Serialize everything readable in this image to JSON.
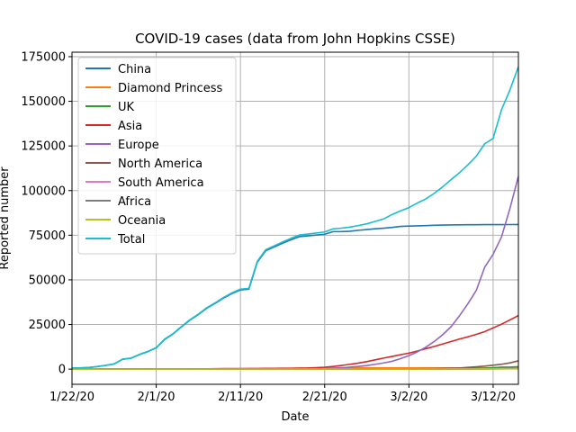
{
  "chart_data": {
    "type": "line",
    "title": "COVID-19 cases (data from John Hopkins CSSE)",
    "xlabel": "Date",
    "ylabel": "Reported number",
    "x_start": "1/22/20",
    "x_end": "3/15/20",
    "xlim": [
      "1/22/20",
      "3/15/20"
    ],
    "ylim": [
      -8500,
      177500
    ],
    "x_ticks": [
      {
        "date": "1/22/20",
        "label": "1/22/20"
      },
      {
        "date": "2/1/20",
        "label": "2/1/20"
      },
      {
        "date": "2/11/20",
        "label": "2/11/20"
      },
      {
        "date": "2/21/20",
        "label": "2/21/20"
      },
      {
        "date": "3/2/20",
        "label": "3/2/20"
      },
      {
        "date": "3/12/20",
        "label": "3/12/20"
      }
    ],
    "y_ticks": [
      {
        "value": 0,
        "label": "0"
      },
      {
        "value": 25000,
        "label": "25000"
      },
      {
        "value": 50000,
        "label": "50000"
      },
      {
        "value": 75000,
        "label": "75000"
      },
      {
        "value": 100000,
        "label": "100000"
      },
      {
        "value": 125000,
        "label": "125000"
      },
      {
        "value": 150000,
        "label": "150000"
      },
      {
        "value": 175000,
        "label": "175000"
      }
    ],
    "grid": true,
    "legend_position": "top-left",
    "series": [
      {
        "name": "China",
        "color": "#1f77b4",
        "values": [
          548,
          643,
          920,
          1406,
          2075,
          2877,
          5509,
          6087,
          8141,
          9802,
          11891,
          16630,
          19716,
          23707,
          27440,
          30587,
          34110,
          36814,
          39829,
          42354,
          44386,
          44759,
          59895,
          66358,
          68413,
          70513,
          72434,
          74211,
          74619,
          75077,
          75550,
          77001,
          77022,
          77241,
          77754,
          78166,
          78600,
          78928,
          79356,
          79932,
          80136,
          80261,
          80386,
          80537,
          80690,
          80770,
          80823,
          80860,
          80887,
          80921,
          80932,
          80945,
          80977,
          80990
        ]
      },
      {
        "name": "Diamond Princess",
        "color": "#ff7f0e",
        "values": [
          0,
          0,
          0,
          0,
          0,
          0,
          0,
          0,
          0,
          0,
          0,
          0,
          0,
          0,
          0,
          10,
          20,
          61,
          64,
          70,
          135,
          175,
          174,
          218,
          218,
          355,
          454,
          542,
          621,
          634,
          634,
          634,
          691,
          691,
          691,
          705,
          705,
          705,
          705,
          705,
          705,
          706,
          706,
          706,
          696,
          696,
          696,
          696,
          696,
          696,
          696,
          696,
          696,
          712
        ]
      },
      {
        "name": "UK",
        "color": "#2ca02c",
        "values": [
          0,
          0,
          0,
          0,
          0,
          0,
          0,
          0,
          0,
          2,
          2,
          2,
          2,
          2,
          2,
          2,
          3,
          3,
          3,
          8,
          8,
          9,
          9,
          9,
          9,
          9,
          9,
          9,
          9,
          9,
          9,
          9,
          13,
          13,
          13,
          16,
          20,
          23,
          36,
          40,
          51,
          85,
          115,
          163,
          206,
          273,
          321,
          382,
          456,
          460,
          798,
          1140,
          1140,
          1391
        ]
      },
      {
        "name": "Asia",
        "color": "#d62728",
        "values": [
          4,
          6,
          11,
          17,
          27,
          38,
          43,
          45,
          51,
          64,
          75,
          85,
          92,
          113,
          140,
          168,
          198,
          238,
          276,
          299,
          328,
          356,
          387,
          424,
          442,
          470,
          511,
          545,
          613,
          816,
          1072,
          1474,
          2041,
          2713,
          3378,
          4181,
          5190,
          6176,
          7108,
          8060,
          8960,
          10134,
          11442,
          12685,
          14072,
          15464,
          16824,
          18112,
          19481,
          21015,
          23064,
          25186,
          27556,
          30000
        ]
      },
      {
        "name": "Europe",
        "color": "#9467bd",
        "values": [
          0,
          0,
          2,
          3,
          3,
          4,
          5,
          8,
          11,
          16,
          18,
          22,
          23,
          27,
          30,
          32,
          35,
          39,
          40,
          41,
          43,
          44,
          45,
          46,
          46,
          48,
          50,
          53,
          60,
          120,
          250,
          490,
          720,
          1100,
          1480,
          2000,
          2710,
          3470,
          4380,
          5860,
          7560,
          9660,
          12250,
          15470,
          19220,
          23690,
          29860,
          36580,
          44100,
          57110,
          64320,
          74080,
          90040,
          108000
        ]
      },
      {
        "name": "North America",
        "color": "#8c564b",
        "values": [
          1,
          1,
          2,
          2,
          5,
          5,
          5,
          6,
          6,
          8,
          9,
          11,
          11,
          11,
          11,
          12,
          12,
          14,
          15,
          15,
          15,
          15,
          15,
          15,
          16,
          16,
          16,
          16,
          16,
          16,
          16,
          51,
          51,
          51,
          59,
          60,
          62,
          70,
          76,
          101,
          122,
          153,
          221,
          278,
          417,
          537,
          605,
          959,
          1281,
          1663,
          2179,
          2726,
          3499,
          4632
        ]
      },
      {
        "name": "South America",
        "color": "#e377c2",
        "values": [
          0,
          0,
          0,
          0,
          0,
          0,
          0,
          0,
          0,
          0,
          0,
          0,
          0,
          0,
          0,
          0,
          0,
          0,
          0,
          0,
          0,
          0,
          0,
          0,
          0,
          0,
          0,
          0,
          0,
          0,
          0,
          0,
          0,
          0,
          1,
          1,
          1,
          2,
          2,
          3,
          5,
          7,
          10,
          15,
          20,
          30,
          40,
          60,
          80,
          110,
          150,
          210,
          290,
          400
        ]
      },
      {
        "name": "Africa",
        "color": "#7f7f7f",
        "values": [
          0,
          0,
          0,
          0,
          0,
          0,
          0,
          0,
          0,
          0,
          0,
          0,
          0,
          0,
          0,
          0,
          0,
          0,
          0,
          0,
          0,
          0,
          0,
          0,
          1,
          1,
          1,
          1,
          1,
          1,
          1,
          1,
          1,
          1,
          1,
          1,
          1,
          2,
          2,
          3,
          3,
          5,
          10,
          15,
          25,
          35,
          50,
          70,
          90,
          130,
          170,
          220,
          290,
          380
        ]
      },
      {
        "name": "Oceania",
        "color": "#bcbd22",
        "values": [
          0,
          0,
          0,
          0,
          4,
          5,
          5,
          6,
          9,
          9,
          12,
          12,
          12,
          13,
          13,
          14,
          15,
          15,
          15,
          15,
          15,
          15,
          15,
          15,
          15,
          15,
          15,
          15,
          15,
          15,
          15,
          15,
          16,
          21,
          23,
          23,
          24,
          27,
          30,
          39,
          52,
          55,
          60,
          63,
          76,
          91,
          107,
          112,
          127,
          128,
          140,
          160,
          200,
          250
        ]
      },
      {
        "name": "Total",
        "color": "#17becf",
        "values": [
          555,
          654,
          941,
          1434,
          2118,
          2927,
          5578,
          6166,
          8234,
          9927,
          12038,
          16787,
          19881,
          23892,
          27635,
          30817,
          34391,
          37120,
          40150,
          42762,
          44802,
          45221,
          60368,
          66885,
          69030,
          71224,
          73258,
          75136,
          75639,
          76197,
          76819,
          78572,
          78958,
          79561,
          80406,
          81388,
          82746,
          84112,
          86604,
          88585,
          90443,
          93016,
          95314,
          98425,
          102050,
          106099,
          109991,
          114381,
          119236,
          126214,
          129226,
          145336,
          156399,
          169387
        ]
      }
    ]
  }
}
